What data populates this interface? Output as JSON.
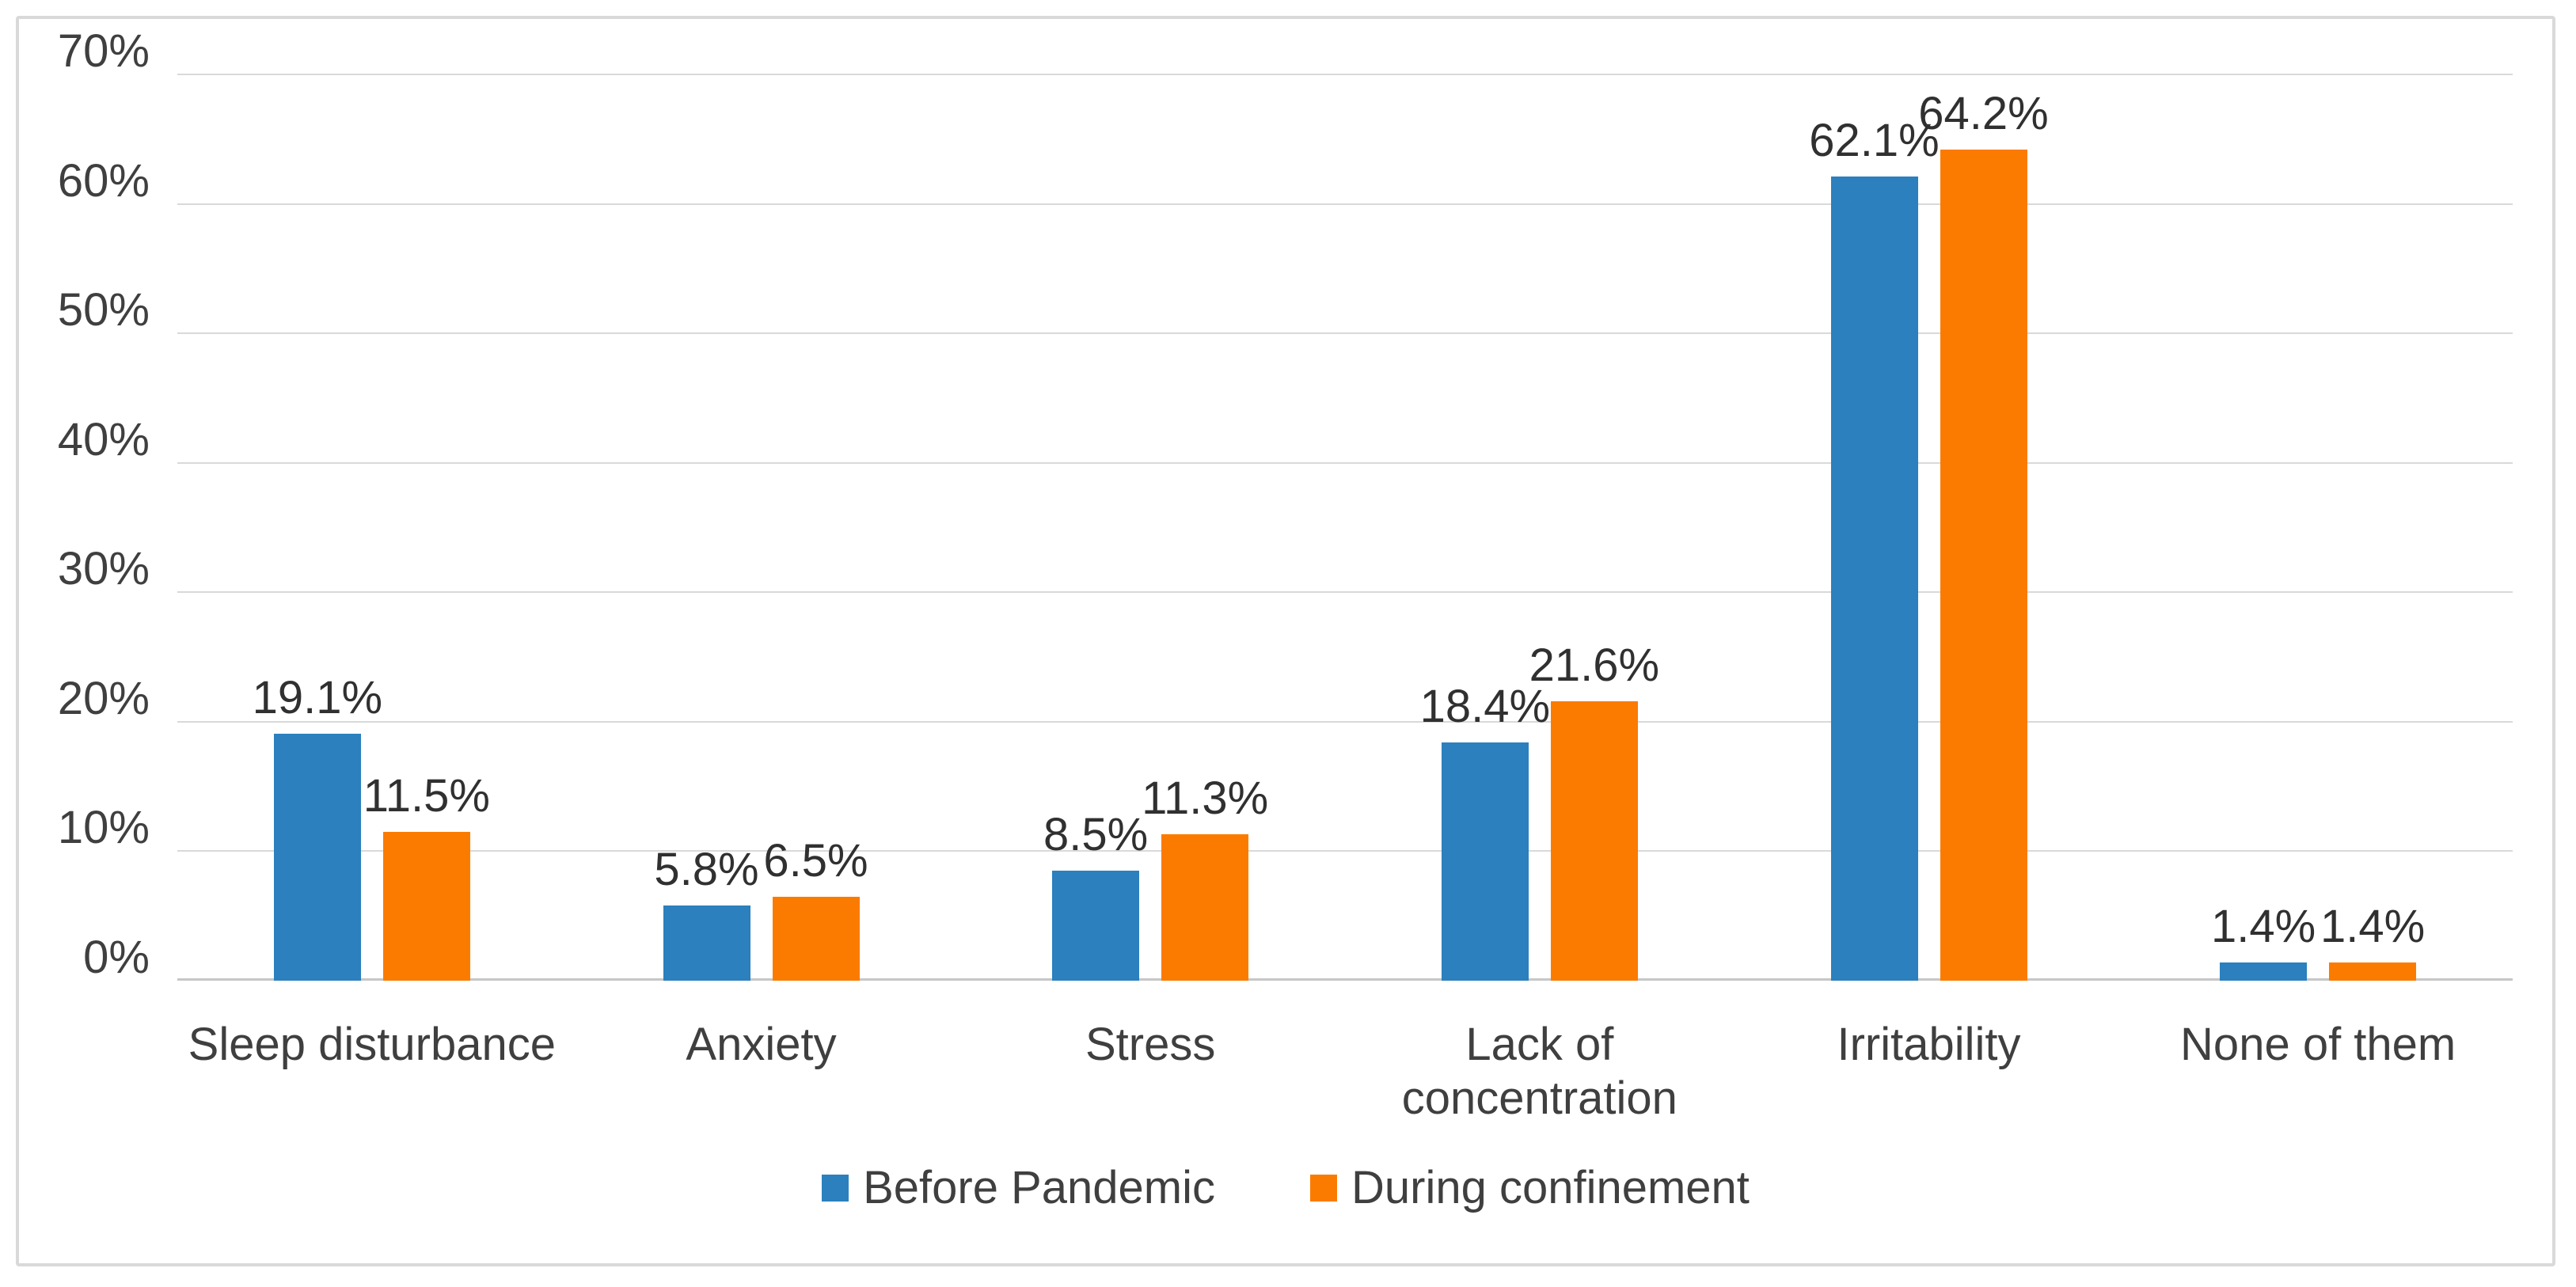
{
  "chart_data": {
    "type": "bar",
    "title": "",
    "xlabel": "",
    "ylabel": "",
    "categories": [
      "Sleep disturbance",
      "Anxiety",
      "Stress",
      "Lack of concentration",
      "Irritability",
      "None of them"
    ],
    "series": [
      {
        "name": "Before Pandemic",
        "color": "#2B80BD",
        "values": [
          19.1,
          5.8,
          8.5,
          18.4,
          62.1,
          1.4
        ],
        "labels": [
          "19.1%",
          "5.8%",
          "8.5%",
          "18.4%",
          "62.1%",
          "1.4%"
        ]
      },
      {
        "name": "During confinement",
        "color": "#FB7B00",
        "values": [
          11.5,
          6.5,
          11.3,
          21.6,
          64.2,
          1.4
        ],
        "labels": [
          "11.5%",
          "6.5%",
          "11.3%",
          "21.6%",
          "64.2%",
          "1.4%"
        ]
      }
    ],
    "ylim": [
      0,
      70
    ],
    "y_tick_step": 10,
    "y_tick_labels": [
      "0%",
      "10%",
      "20%",
      "30%",
      "40%",
      "50%",
      "60%",
      "70%"
    ],
    "grid": true,
    "legend_position": "bottom"
  },
  "style": {
    "grid_color": "#D9D9D9",
    "axis_color": "#C7C7C7",
    "text_color": "#3F3F3F",
    "frame_border_color": "#D9D9D9",
    "background": "#FFFFFF"
  }
}
